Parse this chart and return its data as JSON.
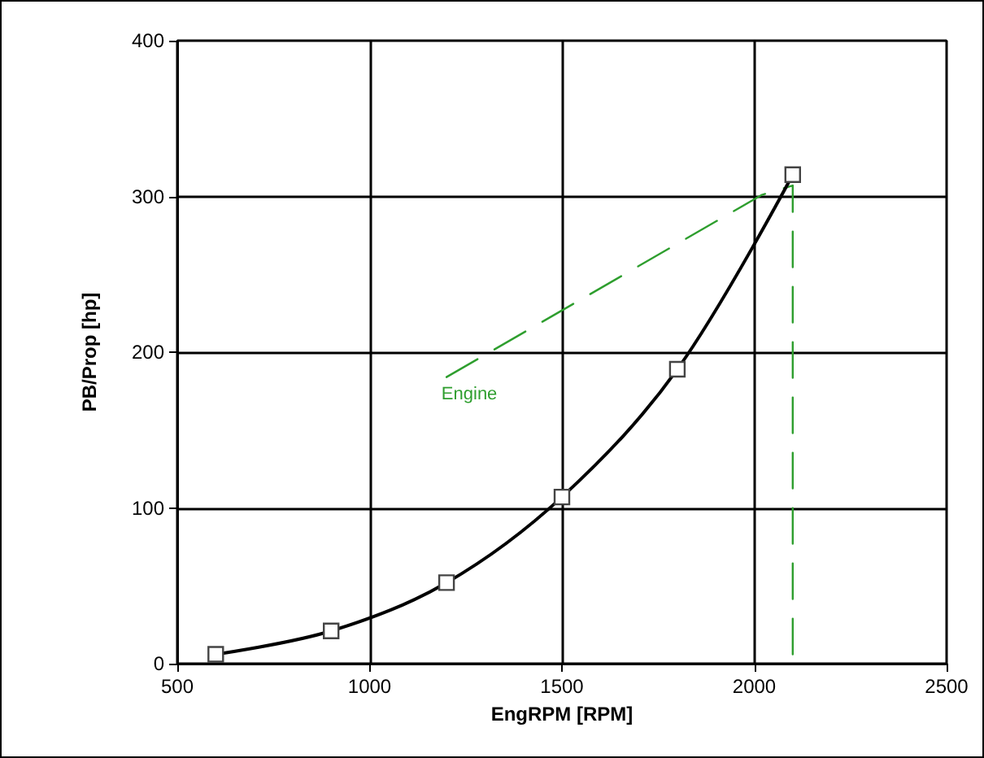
{
  "chart_data": {
    "type": "line",
    "xlabel": "EngRPM [RPM]",
    "ylabel": "PB/Prop [hp]",
    "xlim": [
      500,
      2500
    ],
    "xticks": [
      500,
      1000,
      1500,
      2000,
      2500
    ],
    "ylim": [
      0,
      400
    ],
    "yticks": [
      0,
      100,
      200,
      300,
      400
    ],
    "grid": true,
    "legend": false,
    "series": [
      {
        "color": "#000000",
        "marker": "square",
        "line_style": "solid",
        "x": [
          600,
          900,
          1200,
          1500,
          1800,
          2100
        ],
        "values": [
          6,
          21,
          52,
          107,
          189,
          314
        ]
      },
      {
        "name": "Engine",
        "color": "#2e9e2e",
        "marker": "none",
        "line_style": "dashed",
        "x": [
          1200,
          2020,
          2100,
          2100
        ],
        "values": [
          184,
          301,
          307,
          0
        ]
      }
    ]
  }
}
